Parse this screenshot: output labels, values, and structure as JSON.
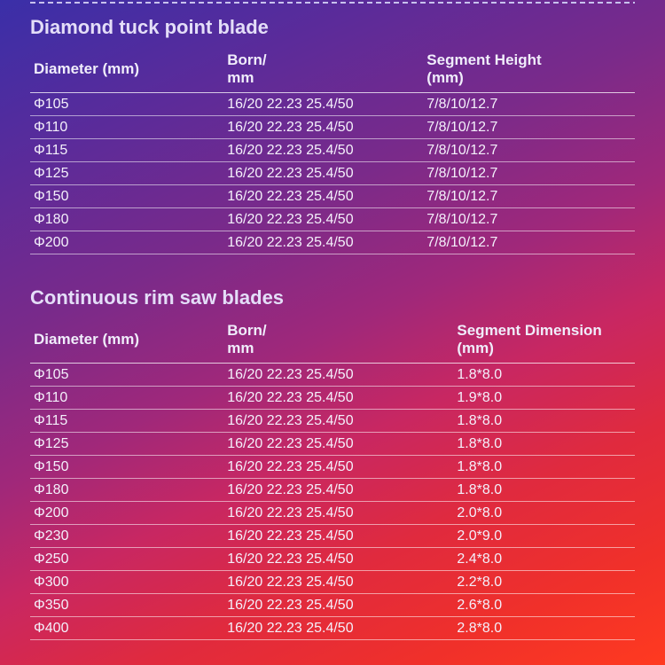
{
  "tables": [
    {
      "title": "Diamond tuck point blade",
      "columns": [
        "Diameter (mm)",
        "Born/\nmm",
        "Segment Height\n (mm)"
      ],
      "rows": [
        [
          "Φ105",
          "16/20 22.23 25.4/50",
          "7/8/10/12.7"
        ],
        [
          "Φ110",
          "16/20 22.23 25.4/50",
          "7/8/10/12.7"
        ],
        [
          "Φ115",
          "16/20 22.23 25.4/50",
          "7/8/10/12.7"
        ],
        [
          "Φ125",
          "16/20 22.23 25.4/50",
          "7/8/10/12.7"
        ],
        [
          "Φ150",
          "16/20 22.23 25.4/50",
          "7/8/10/12.7"
        ],
        [
          "Φ180",
          "16/20 22.23 25.4/50",
          "7/8/10/12.7"
        ],
        [
          "Φ200",
          "16/20 22.23 25.4/50",
          "7/8/10/12.7"
        ]
      ]
    },
    {
      "title": "Continuous rim saw blades",
      "columns": [
        "Diameter (mm)",
        "Born/\nmm",
        "Segment Dimension\n (mm)"
      ],
      "rows": [
        [
          "Φ105",
          "16/20 22.23 25.4/50",
          "1.8*8.0"
        ],
        [
          "Φ110",
          "16/20 22.23 25.4/50",
          "1.9*8.0"
        ],
        [
          "Φ115",
          "16/20 22.23 25.4/50",
          "1.8*8.0"
        ],
        [
          "Φ125",
          "16/20 22.23 25.4/50",
          "1.8*8.0"
        ],
        [
          "Φ150",
          "16/20 22.23 25.4/50",
          "1.8*8.0"
        ],
        [
          "Φ180",
          "16/20 22.23 25.4/50",
          "1.8*8.0"
        ],
        [
          "Φ200",
          "16/20 22.23 25.4/50",
          "2.0*8.0"
        ],
        [
          "Φ230",
          "16/20 22.23 25.4/50",
          "2.0*9.0"
        ],
        [
          "Φ250",
          "16/20 22.23 25.4/50",
          "2.4*8.0"
        ],
        [
          "Φ300",
          "16/20 22.23 25.4/50",
          "2.2*8.0"
        ],
        [
          "Φ350",
          "16/20 22.23 25.4/50",
          "2.6*8.0"
        ],
        [
          "Φ400",
          "16/20 22.23 25.4/50",
          "2.8*8.0"
        ]
      ]
    }
  ]
}
